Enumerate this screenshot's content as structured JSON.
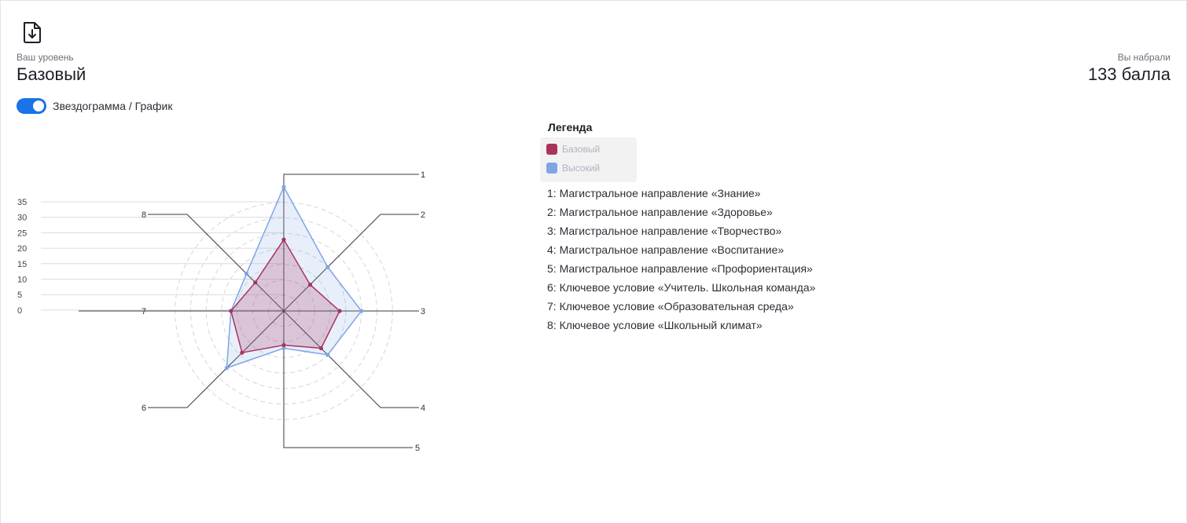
{
  "header": {
    "download_icon": "file-download-icon",
    "level_caption": "Ваш уровень",
    "level_value": "Базовый",
    "score_caption": "Вы набрали",
    "score_value": "133 балла"
  },
  "toggle": {
    "label": "Звездограмма / График",
    "on": true,
    "color": "#1a73e8"
  },
  "legend": {
    "title": "Легенда",
    "items": [
      {
        "label": "Базовый",
        "color": "#a8345e"
      },
      {
        "label": "Высокий",
        "color": "#7ea6e6"
      }
    ],
    "axes": [
      "1: Магистральное направление «Знание»",
      "2: Магистральное направление «Здоровье»",
      "3: Магистральное направление «Творчество»",
      "4: Магистральное направление «Воспитание»",
      "5: Магистральное направление «Профориентация»",
      "6: Ключевое условие «Учитель. Школьная команда»",
      "7: Ключевое условие «Образовательная среда»",
      "8: Ключевое условие «Школьный климат»"
    ]
  },
  "chart_data": {
    "type": "radar",
    "categories": [
      "1",
      "2",
      "3",
      "4",
      "5",
      "6",
      "7",
      "8"
    ],
    "scale_ticks": [
      "35",
      "30",
      "25",
      "20",
      "15",
      "10",
      "5",
      "0"
    ],
    "ylim": [
      0,
      35
    ],
    "series": [
      {
        "name": "Базовый",
        "color": "#a8345e",
        "values": [
          23,
          12,
          18,
          17,
          11,
          19,
          17,
          13
        ]
      },
      {
        "name": "Высокий",
        "color": "#7ea6e6",
        "values": [
          40,
          20,
          25,
          20,
          12,
          26,
          17,
          17
        ]
      }
    ]
  }
}
